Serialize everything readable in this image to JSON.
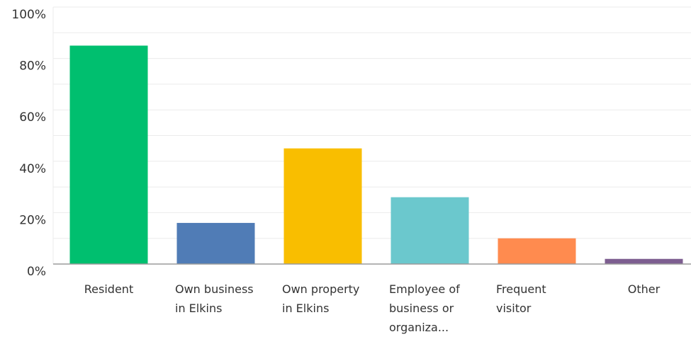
{
  "chart_data": {
    "type": "bar",
    "categories": [
      "Resident",
      "Own business in Elkins",
      "Own property in Elkins",
      "Employee of business or organiza...",
      "Frequent visitor",
      "Other"
    ],
    "values": [
      85,
      16,
      45,
      26,
      10,
      2
    ],
    "colors": [
      "#00bf6f",
      "#507cb6",
      "#f9be00",
      "#6bc8cd",
      "#ff8b4f",
      "#7d5e90"
    ],
    "ylim": [
      0,
      100
    ],
    "yticks": [
      {
        "value": 0,
        "label": "0%"
      },
      {
        "value": 20,
        "label": "20%"
      },
      {
        "value": 40,
        "label": "40%"
      },
      {
        "value": 60,
        "label": "60%"
      },
      {
        "value": 80,
        "label": "80%"
      },
      {
        "value": 100,
        "label": "100%"
      }
    ],
    "yminor_ticks": [
      10,
      30,
      50,
      70,
      90
    ],
    "grid": true
  }
}
